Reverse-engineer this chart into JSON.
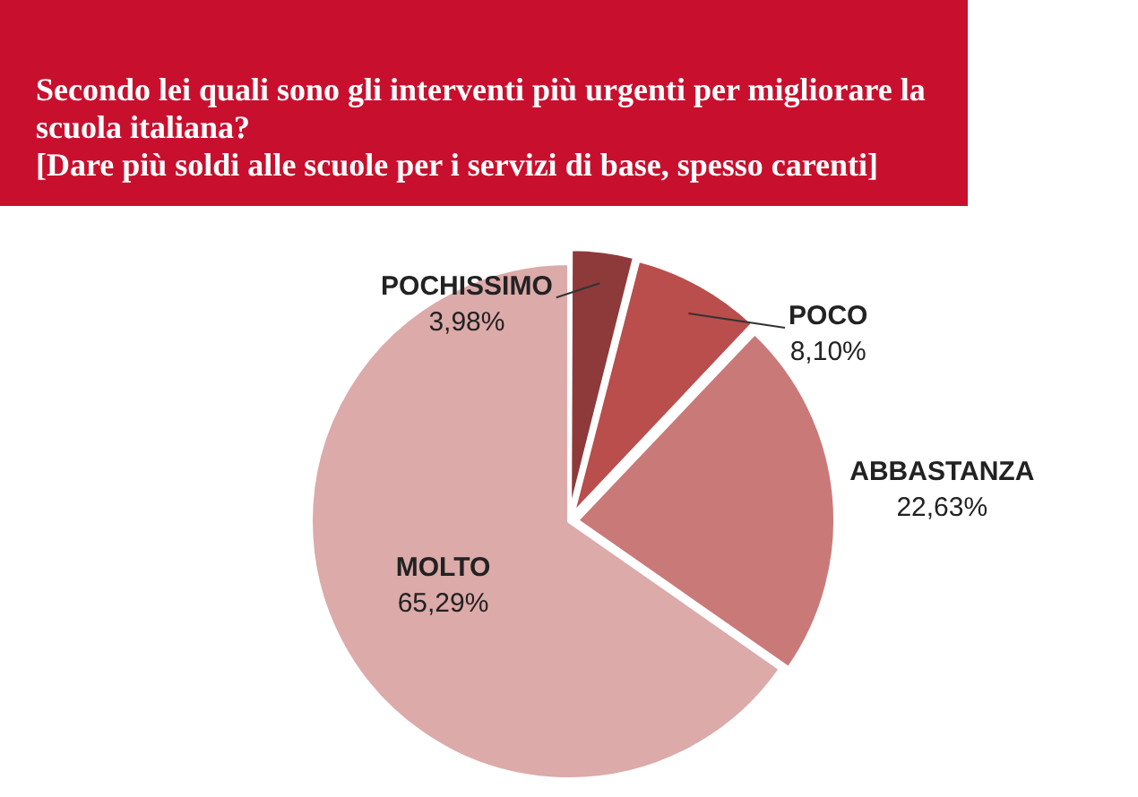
{
  "chart_data": {
    "type": "pie",
    "title": "Secondo lei quali sono gli interventi più urgenti per migliorare la scuola italiana?",
    "subtitle": "[Dare più soldi alle scuole per i servizi di base, spesso carenti]",
    "categories": [
      "POCHISSIMO",
      "POCO",
      "ABBASTANZA",
      "MOLTO"
    ],
    "values": [
      3.98,
      8.1,
      22.63,
      65.29
    ],
    "value_labels": [
      "3,98%",
      "8,10%",
      "22,63%",
      "65,29%"
    ],
    "colors": [
      "#8e3a3a",
      "#b94e4c",
      "#c97a78",
      "#dcaaa9"
    ],
    "legend": false
  }
}
